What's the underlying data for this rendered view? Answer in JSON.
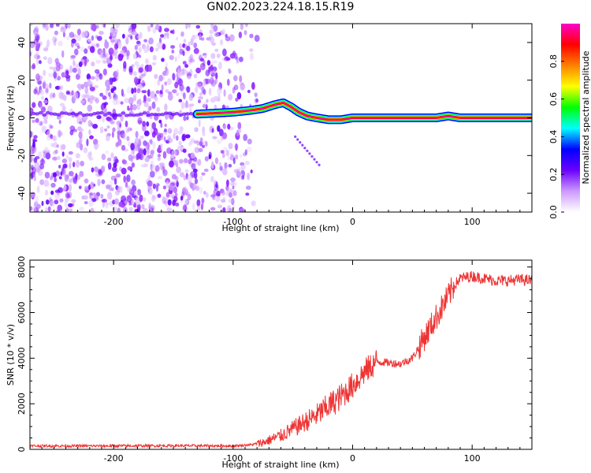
{
  "title": "GN02.2023.224.18.15.R19",
  "chart_data": [
    {
      "type": "heatmap",
      "xlabel": "Height of straight line (km)",
      "ylabel": "Frequency (Hz)",
      "xlim": [
        -270,
        150
      ],
      "ylim": [
        -50,
        50
      ],
      "x_ticks": [
        -200,
        -100,
        0,
        100
      ],
      "y_ticks": [
        -40,
        -20,
        0,
        20,
        40
      ],
      "colorbar": {
        "label": "Normalized spectral amplitude",
        "range": [
          0,
          1
        ],
        "ticks": [
          0.0,
          0.2,
          0.4,
          0.6,
          0.8
        ],
        "colors": [
          "#ffffff",
          "#cc99ff",
          "#6a00ff",
          "#0000ff",
          "#00ffff",
          "#00ff00",
          "#ffff00",
          "#ff8000",
          "#ff0000",
          "#ff00cc"
        ]
      },
      "ridge": {
        "x": [
          -130,
          -100,
          -85,
          -75,
          -65,
          -58,
          -52,
          -45,
          -38,
          -30,
          -20,
          -10,
          0,
          10,
          30,
          50,
          70,
          80,
          90,
          100,
          120,
          150
        ],
        "y": [
          2,
          3,
          4,
          5,
          7,
          8,
          6,
          3,
          1,
          0,
          -1,
          -1,
          0,
          0,
          0,
          0,
          0,
          1,
          0,
          0,
          0,
          0
        ]
      }
    },
    {
      "type": "line",
      "xlabel": "Height of straight line (km)",
      "ylabel": "SNR (10 * v/v)",
      "xlim": [
        -270,
        150
      ],
      "ylim": [
        0,
        8300
      ],
      "x_ticks": [
        -200,
        -100,
        0,
        100
      ],
      "y_ticks": [
        0,
        2000,
        4000,
        6000,
        8000
      ],
      "color": "#ee3333",
      "series": [
        {
          "x": [
            -270,
            -200,
            -150,
            -100,
            -85,
            -75,
            -60,
            -50,
            -40,
            -30,
            -20,
            -10,
            0,
            10,
            20,
            30,
            40,
            50,
            60,
            70,
            80,
            85,
            90,
            100,
            110,
            120,
            130,
            140,
            150
          ],
          "values": [
            150,
            150,
            160,
            150,
            200,
            300,
            600,
            900,
            1200,
            1500,
            1900,
            2300,
            2800,
            3400,
            3850,
            3800,
            3750,
            4000,
            4900,
            5800,
            6700,
            7200,
            7500,
            7600,
            7500,
            7400,
            7400,
            7450,
            7400
          ]
        }
      ]
    }
  ]
}
